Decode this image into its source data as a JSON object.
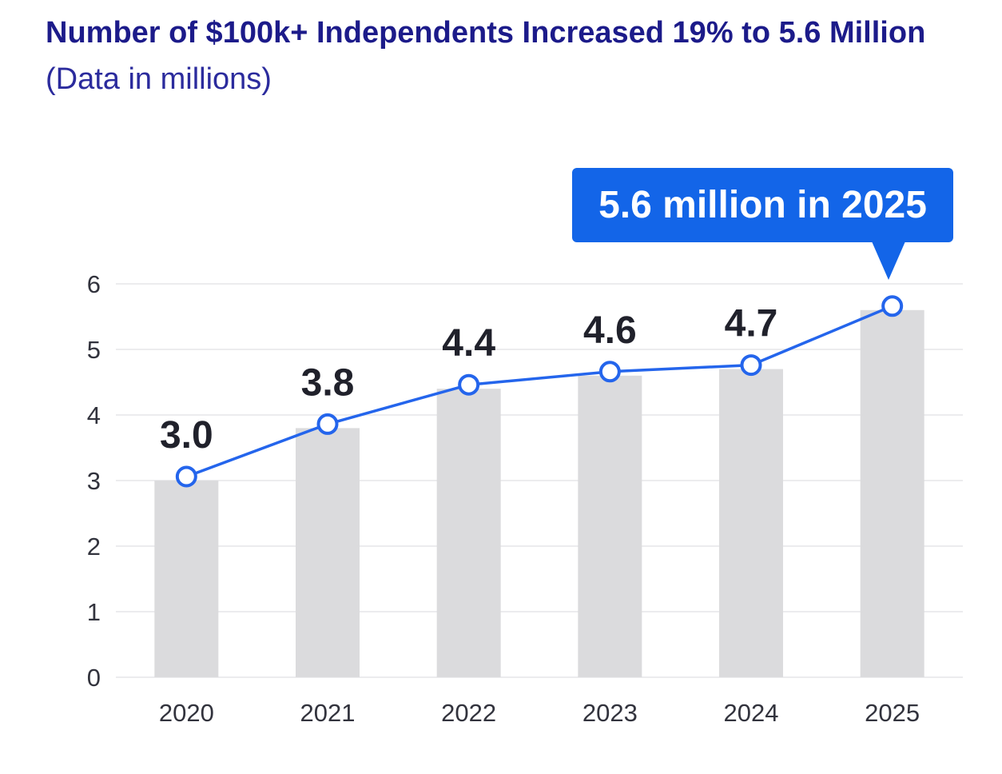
{
  "header": {
    "title": "Number of $100k+ Independents Increased 19% to 5.6 Million",
    "subtitle": "(Data in millions)",
    "title_color": "#1c1b8a",
    "subtitle_color": "#2b2b9d"
  },
  "callout": {
    "text": "5.6 million in 2025",
    "bg_color": "#1365e8",
    "text_color": "#ffffff"
  },
  "chart_data": {
    "type": "bar",
    "overlay": "line-with-markers",
    "title": "Number of $100k+ Independents Increased 19% to 5.6 Million",
    "subtitle": "(Data in millions)",
    "categories": [
      "2020",
      "2021",
      "2022",
      "2023",
      "2024",
      "2025"
    ],
    "values": [
      3.0,
      3.8,
      4.4,
      4.6,
      4.7,
      5.6
    ],
    "data_labels": [
      "3.0",
      "3.8",
      "4.4",
      "4.6",
      "4.7",
      ""
    ],
    "annotation": "5.6 million in 2025",
    "xlabel": "",
    "ylabel": "",
    "ylim": [
      0,
      6
    ],
    "yticks": [
      0,
      1,
      2,
      3,
      4,
      5,
      6
    ],
    "grid": true,
    "legend": false,
    "bar_color": "#dbdbdd",
    "line_color": "#2465ec",
    "marker_fill": "#ffffff",
    "marker_stroke": "#2465ec",
    "grid_color": "#ececee",
    "axis_label_color": "#32333d",
    "data_label_color": "#20212b"
  }
}
